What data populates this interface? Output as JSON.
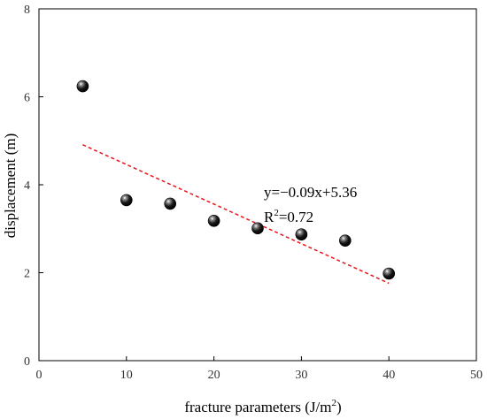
{
  "chart_data": {
    "type": "scatter",
    "title": "",
    "xlabel": "fracture parameters (J/m",
    "xlabel_superscript": "2",
    "xlabel_suffix": ")",
    "ylabel": "displacement (m)",
    "xlim": [
      0,
      50
    ],
    "ylim": [
      0,
      8
    ],
    "xticks": [
      0,
      10,
      20,
      30,
      40,
      50
    ],
    "yticks": [
      0,
      2,
      4,
      6,
      8
    ],
    "grid": false,
    "series": [
      {
        "x": [
          5,
          10,
          15,
          20,
          25,
          30,
          35,
          40
        ],
        "y": [
          6.24,
          3.65,
          3.57,
          3.18,
          3.01,
          2.87,
          2.73,
          1.98
        ]
      }
    ],
    "fit": {
      "slope": -0.09,
      "intercept": 5.36,
      "x_range": [
        5,
        40
      ],
      "color": "#e8141b",
      "style": "dashed"
    },
    "annotation": {
      "equation": "y=−0.09x+5.36",
      "r2_prefix": "R",
      "r2_superscript": "2",
      "r2_suffix": "=0.72"
    },
    "marker_color": "#000000"
  }
}
